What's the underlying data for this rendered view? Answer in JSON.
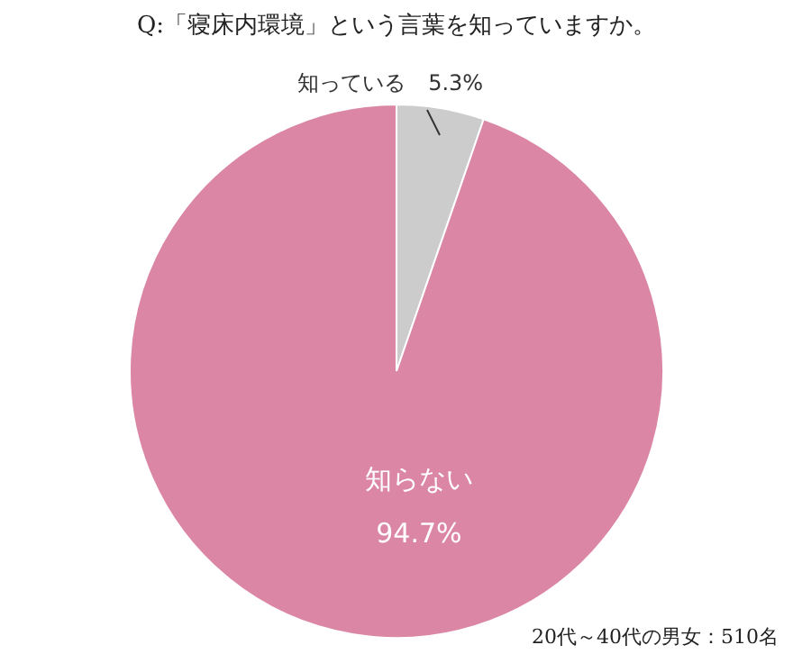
{
  "chart_data": {
    "type": "pie",
    "title": "Q:「寝床内環境」という言葉を知っていますか。",
    "categories": [
      "知っている",
      "知らない"
    ],
    "values": [
      5.3,
      94.7
    ],
    "value_labels": [
      "5.3%",
      "94.7%"
    ],
    "colors": [
      "#cccccc",
      "#db86a5"
    ],
    "annotations": [
      "20代～40代の男女：510名"
    ]
  }
}
